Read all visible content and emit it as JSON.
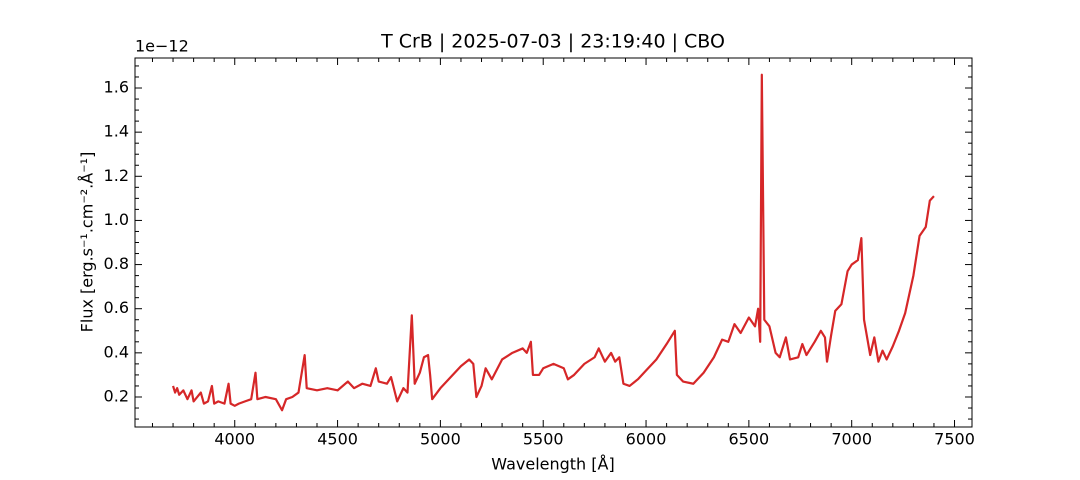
{
  "chart_data": {
    "type": "line",
    "title": "T CrB | 2025-07-03 | 23:19:40 | CBO",
    "x_label": "Wavelength [Å]",
    "y_label": "Flux [erg.s⁻¹.cm⁻².Å⁻¹]",
    "y_offset_label": "1e−12",
    "xlim": [
      3515,
      7585
    ],
    "ylim": [
      0.064,
      1.736
    ],
    "xticks": [
      4000,
      4500,
      5000,
      5500,
      6000,
      6500,
      7000,
      7500
    ],
    "yticks": [
      0.2,
      0.4,
      0.6,
      0.8,
      {
        "value": 1,
        "label": "1.0"
      },
      1.2,
      1.4,
      1.6
    ],
    "xminorticks": [
      3600,
      3700,
      3800,
      3900,
      4100,
      4200,
      4300,
      4400,
      4600,
      4700,
      4800,
      4900,
      5100,
      5200,
      5300,
      5400,
      5600,
      5700,
      5800,
      5900,
      6100,
      6200,
      6300,
      6400,
      6600,
      6700,
      6800,
      6900,
      7100,
      7200,
      7300,
      7400
    ],
    "yminorticks": [
      0.1,
      0.15,
      0.25,
      0.3,
      0.35,
      0.45,
      0.5,
      0.55,
      0.65,
      0.7,
      0.75,
      0.85,
      0.9,
      0.95,
      1.05,
      1.1,
      1.15,
      1.25,
      1.3,
      1.35,
      1.45,
      1.5,
      1.55,
      1.65,
      1.7
    ],
    "grid": false,
    "series": [
      {
        "color": "#d62728",
        "x": [
          3700,
          3710,
          3720,
          3730,
          3750,
          3770,
          3790,
          3800,
          3835,
          3850,
          3870,
          3889,
          3900,
          3920,
          3950,
          3970,
          3980,
          4000,
          4020,
          4050,
          4080,
          4101,
          4110,
          4150,
          4200,
          4230,
          4250,
          4280,
          4310,
          4340,
          4350,
          4400,
          4450,
          4500,
          4550,
          4580,
          4620,
          4660,
          4686,
          4700,
          4740,
          4760,
          4790,
          4820,
          4840,
          4861,
          4875,
          4900,
          4920,
          4940,
          4950,
          4960,
          5000,
          5050,
          5100,
          5140,
          5160,
          5175,
          5200,
          5220,
          5250,
          5300,
          5350,
          5400,
          5420,
          5440,
          5450,
          5480,
          5500,
          5550,
          5600,
          5620,
          5650,
          5700,
          5750,
          5770,
          5800,
          5830,
          5850,
          5870,
          5890,
          5920,
          5960,
          6000,
          6050,
          6100,
          6140,
          6150,
          6180,
          6230,
          6280,
          6330,
          6370,
          6400,
          6430,
          6460,
          6500,
          6530,
          6545,
          6555,
          6563,
          6575,
          6600,
          6630,
          6650,
          6680,
          6700,
          6740,
          6760,
          6780,
          6820,
          6850,
          6870,
          6880,
          6900,
          6920,
          6950,
          6980,
          7000,
          7030,
          7047,
          7060,
          7090,
          7110,
          7130,
          7150,
          7170,
          7200,
          7230,
          7260,
          7300,
          7330,
          7360,
          7380,
          7400
        ],
        "values": [
          0.25,
          0.22,
          0.24,
          0.21,
          0.23,
          0.19,
          0.23,
          0.18,
          0.22,
          0.17,
          0.18,
          0.25,
          0.17,
          0.18,
          0.17,
          0.26,
          0.17,
          0.16,
          0.17,
          0.18,
          0.19,
          0.31,
          0.19,
          0.2,
          0.19,
          0.14,
          0.19,
          0.2,
          0.22,
          0.39,
          0.24,
          0.23,
          0.24,
          0.23,
          0.27,
          0.24,
          0.26,
          0.25,
          0.33,
          0.27,
          0.26,
          0.29,
          0.18,
          0.24,
          0.22,
          0.57,
          0.26,
          0.31,
          0.38,
          0.39,
          0.3,
          0.19,
          0.24,
          0.29,
          0.34,
          0.37,
          0.35,
          0.2,
          0.25,
          0.33,
          0.28,
          0.37,
          0.4,
          0.42,
          0.4,
          0.45,
          0.3,
          0.3,
          0.33,
          0.35,
          0.33,
          0.28,
          0.3,
          0.35,
          0.38,
          0.42,
          0.36,
          0.4,
          0.36,
          0.38,
          0.26,
          0.25,
          0.28,
          0.32,
          0.37,
          0.44,
          0.5,
          0.3,
          0.27,
          0.26,
          0.31,
          0.38,
          0.46,
          0.45,
          0.53,
          0.49,
          0.56,
          0.52,
          0.6,
          0.45,
          1.66,
          0.55,
          0.52,
          0.4,
          0.38,
          0.47,
          0.37,
          0.38,
          0.44,
          0.39,
          0.45,
          0.5,
          0.47,
          0.36,
          0.48,
          0.59,
          0.62,
          0.77,
          0.8,
          0.82,
          0.92,
          0.55,
          0.39,
          0.47,
          0.36,
          0.41,
          0.37,
          0.43,
          0.5,
          0.58,
          0.75,
          0.93,
          0.97,
          1.09,
          1.11
        ]
      }
    ]
  }
}
